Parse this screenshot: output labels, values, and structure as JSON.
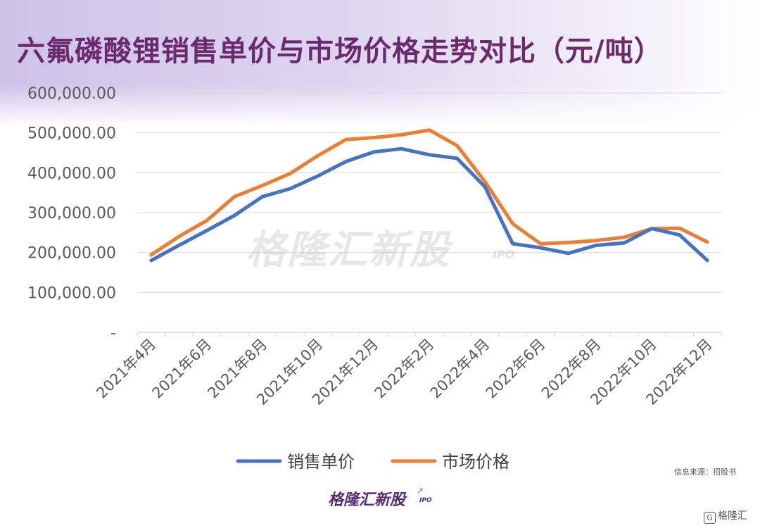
{
  "title": "六氟磷酸锂销售单价与市场价格走势对比（元/吨）",
  "watermark": {
    "main": "格隆汇新股",
    "sub": "IPO"
  },
  "source_note": "信息来源：招股书",
  "brand": {
    "name": "格隆汇新股",
    "sub": "IPO"
  },
  "corner_logo": {
    "icon": "G",
    "text": "格隆汇"
  },
  "colors": {
    "sales": "#4472c4",
    "market": "#ed7d31",
    "title": "#6b2a6e",
    "grid": "#d9d9d9",
    "axis_text": "#595959"
  },
  "chart_data": {
    "type": "line",
    "categories": [
      "2021年4月",
      "2021年5月",
      "2021年6月",
      "2021年7月",
      "2021年8月",
      "2021年9月",
      "2021年10月",
      "2021年11月",
      "2021年12月",
      "2022年1月",
      "2022年2月",
      "2022年3月",
      "2022年4月",
      "2022年5月",
      "2022年6月",
      "2022年7月",
      "2022年8月",
      "2022年9月",
      "2022年10月",
      "2022年11月",
      "2022年12月"
    ],
    "tick_labels": [
      "2021年4月",
      "2021年6月",
      "2021年8月",
      "2021年10月",
      "2021年12月",
      "2022年2月",
      "2022年4月",
      "2022年6月",
      "2022年8月",
      "2022年10月",
      "2022年12月"
    ],
    "y_tick_labels": [
      "-",
      "100,000.00",
      "200,000.00",
      "300,000.00",
      "400,000.00",
      "500,000.00",
      "600,000.00"
    ],
    "ylim": [
      0,
      600000
    ],
    "y_ticks": [
      0,
      100000,
      200000,
      300000,
      400000,
      500000,
      600000
    ],
    "grid": true,
    "legend_position": "bottom",
    "series": [
      {
        "name": "销售单价",
        "color_key": "sales",
        "values": [
          180000,
          218000,
          255000,
          293000,
          340000,
          360000,
          392000,
          428000,
          452000,
          460000,
          445000,
          436000,
          365000,
          222000,
          212000,
          198000,
          218000,
          224000,
          260000,
          244000,
          180000
        ]
      },
      {
        "name": "市场价格",
        "color_key": "market",
        "values": [
          194000,
          240000,
          280000,
          340000,
          368000,
          398000,
          443000,
          483000,
          488000,
          495000,
          507000,
          468000,
          378000,
          272000,
          222000,
          225000,
          230000,
          238000,
          260000,
          261000,
          226000
        ]
      }
    ]
  }
}
